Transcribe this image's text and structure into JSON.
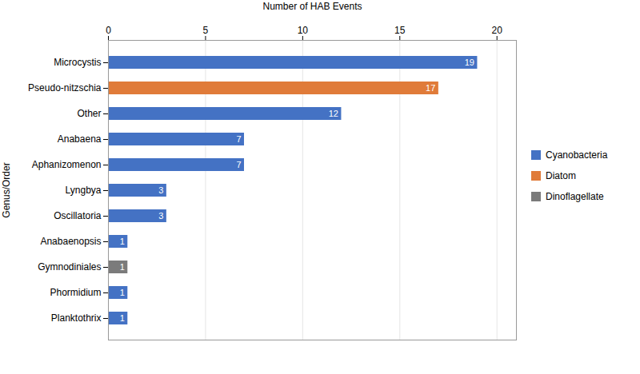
{
  "chart_data": {
    "type": "bar",
    "orientation": "horizontal",
    "xlabel": "Number of HAB Events",
    "ylabel": "Genus/Order",
    "categories": [
      "Planktothrix",
      "Phormidium",
      "Gymnodiniales",
      "Anabaenopsis",
      "Oscillatoria",
      "Lyngbya",
      "Aphanizomenon",
      "Anabaena",
      "Other",
      "Pseudo-nitzschia",
      "Microcystis"
    ],
    "series": [
      {
        "name": "Cyanobacteria",
        "color": "#4472C4",
        "values": [
          1,
          1,
          null,
          1,
          3,
          3,
          7,
          7,
          12,
          null,
          19
        ]
      },
      {
        "name": "Diatom",
        "color": "#E07B39",
        "values": [
          null,
          null,
          null,
          null,
          null,
          null,
          null,
          null,
          null,
          17,
          null
        ]
      },
      {
        "name": "Dinoflagellate",
        "color": "#7B7B7B",
        "values": [
          null,
          null,
          1,
          null,
          null,
          null,
          null,
          null,
          null,
          null,
          null
        ]
      }
    ],
    "xlim": [
      0,
      21
    ],
    "xticks": [
      0,
      5,
      10,
      15,
      20
    ],
    "grid": true,
    "legend": "right",
    "data_labels": true
  }
}
